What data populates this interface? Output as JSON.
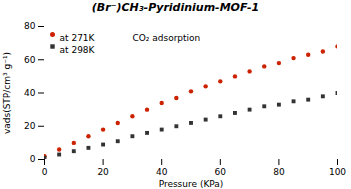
{
  "chart_data": {
    "type": "scatter",
    "title": "(Br⁻)CH₃-Pyridinium-MOF-1",
    "annotations": [
      "CO₂ adsorption"
    ],
    "x": [
      0,
      5,
      10,
      15,
      20,
      25,
      30,
      35,
      40,
      45,
      50,
      55,
      60,
      65,
      70,
      75,
      80,
      85,
      90,
      95,
      100
    ],
    "series": [
      {
        "name": "at 271K",
        "color": "#cc2200",
        "marker": "circle",
        "values": [
          2,
          6,
          10,
          14,
          18,
          22,
          26,
          30,
          34,
          37,
          41,
          44,
          47,
          50,
          53,
          56,
          58,
          61,
          63,
          65,
          68
        ]
      },
      {
        "name": "at 298K",
        "color": "#333333",
        "marker": "square",
        "values": [
          1,
          3,
          5,
          7,
          9,
          11,
          14,
          16,
          18,
          20,
          22,
          24,
          26,
          28,
          30,
          32,
          33,
          35,
          36,
          38,
          40
        ]
      }
    ],
    "xlabel": "Pressure (KPa)",
    "ylabel": "vads(STP/cm³ g⁻¹)",
    "xlim": [
      0,
      100
    ],
    "ylim": [
      0,
      80
    ],
    "xticks": [
      0,
      20,
      40,
      60,
      80,
      100
    ],
    "yticks": [
      0,
      20,
      40,
      60,
      80
    ],
    "grid": false,
    "legend": "upper left"
  }
}
